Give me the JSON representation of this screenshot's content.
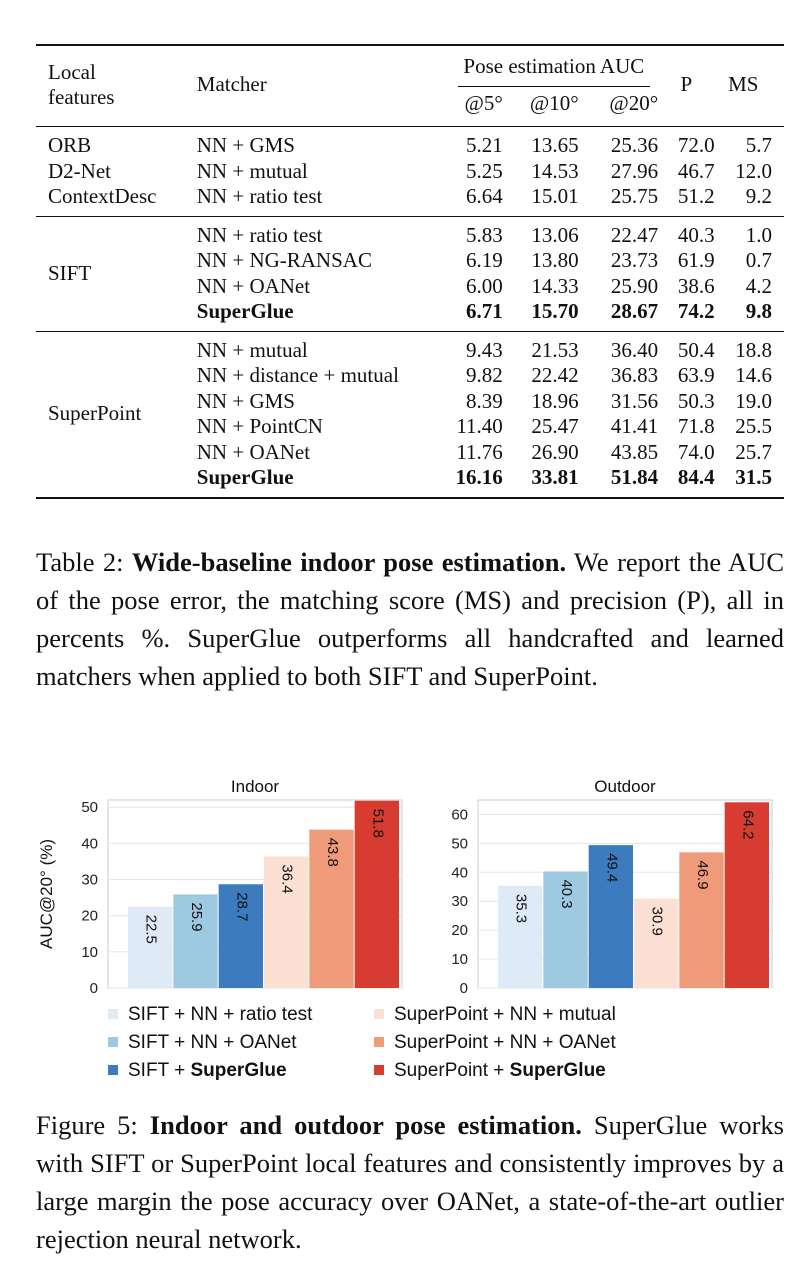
{
  "table": {
    "header": {
      "local_features": [
        "Local",
        "features"
      ],
      "matcher": "Matcher",
      "auc_group": "Pose estimation AUC",
      "auc5": "@5°",
      "auc10": "@10°",
      "auc20": "@20°",
      "p": "P",
      "ms": "MS"
    },
    "groups": [
      {
        "feature": "",
        "rows": [
          {
            "feature": "ORB",
            "matcher": "NN + GMS",
            "auc5": "5.21",
            "auc10": "13.65",
            "auc20": "25.36",
            "p": "72.0",
            "ms": "5.7",
            "bold": false
          },
          {
            "feature": "D2-Net",
            "matcher": "NN + mutual",
            "auc5": "5.25",
            "auc10": "14.53",
            "auc20": "27.96",
            "p": "46.7",
            "ms": "12.0",
            "bold": false
          },
          {
            "feature": "ContextDesc",
            "matcher": "NN + ratio test",
            "auc5": "6.64",
            "auc10": "15.01",
            "auc20": "25.75",
            "p": "51.2",
            "ms": "9.2",
            "bold": false
          }
        ]
      },
      {
        "feature": "SIFT",
        "rows": [
          {
            "feature": "",
            "matcher": "NN + ratio test",
            "auc5": "5.83",
            "auc10": "13.06",
            "auc20": "22.47",
            "p": "40.3",
            "ms": "1.0",
            "bold": false
          },
          {
            "feature": "",
            "matcher": "NN + NG-RANSAC",
            "auc5": "6.19",
            "auc10": "13.80",
            "auc20": "23.73",
            "p": "61.9",
            "ms": "0.7",
            "bold": false
          },
          {
            "feature": "",
            "matcher": "NN + OANet",
            "auc5": "6.00",
            "auc10": "14.33",
            "auc20": "25.90",
            "p": "38.6",
            "ms": "4.2",
            "bold": false
          },
          {
            "feature": "",
            "matcher": "SuperGlue",
            "auc5": "6.71",
            "auc10": "15.70",
            "auc20": "28.67",
            "p": "74.2",
            "ms": "9.8",
            "bold": true
          }
        ]
      },
      {
        "feature": "SuperPoint",
        "rows": [
          {
            "feature": "",
            "matcher": "NN + mutual",
            "auc5": "9.43",
            "auc10": "21.53",
            "auc20": "36.40",
            "p": "50.4",
            "ms": "18.8",
            "bold": false
          },
          {
            "feature": "",
            "matcher": "NN + distance + mutual",
            "auc5": "9.82",
            "auc10": "22.42",
            "auc20": "36.83",
            "p": "63.9",
            "ms": "14.6",
            "bold": false
          },
          {
            "feature": "",
            "matcher": "NN + GMS",
            "auc5": "8.39",
            "auc10": "18.96",
            "auc20": "31.56",
            "p": "50.3",
            "ms": "19.0",
            "bold": false
          },
          {
            "feature": "",
            "matcher": "NN + PointCN",
            "auc5": "11.40",
            "auc10": "25.47",
            "auc20": "41.41",
            "p": "71.8",
            "ms": "25.5",
            "bold": false
          },
          {
            "feature": "",
            "matcher": "NN + OANet",
            "auc5": "11.76",
            "auc10": "26.90",
            "auc20": "43.85",
            "p": "74.0",
            "ms": "25.7",
            "bold": false
          },
          {
            "feature": "",
            "matcher": "SuperGlue",
            "auc5": "16.16",
            "auc10": "33.81",
            "auc20": "51.84",
            "p": "84.4",
            "ms": "31.5",
            "bold": true
          }
        ]
      }
    ]
  },
  "table_caption": {
    "label": "Table 2:",
    "title": "Wide-baseline indoor pose estimation.",
    "body": "We report the AUC of the pose error, the matching score (MS) and precision (P), all in percents %. SuperGlue outperforms all handcrafted and learned matchers when applied to both SIFT and SuperPoint."
  },
  "chart_data": [
    {
      "type": "bar",
      "title": "Indoor",
      "ylabel": "AUC@20° (%)",
      "ylim": [
        0,
        52
      ],
      "yticks": [
        0,
        10,
        20,
        30,
        40,
        50
      ],
      "categories": [
        "SIFT + NN + ratio test",
        "SIFT + NN + OANet",
        "SIFT + SuperGlue",
        "SuperPoint + NN + mutual",
        "SuperPoint + NN + OANet",
        "SuperPoint + SuperGlue"
      ],
      "values": [
        22.5,
        25.9,
        28.7,
        36.4,
        43.8,
        51.8
      ],
      "labels": [
        "22.5",
        "25.9",
        "28.7",
        "36.4",
        "43.8",
        "51.8"
      ],
      "grid": true
    },
    {
      "type": "bar",
      "title": "Outdoor",
      "ylabel": "",
      "ylim": [
        0,
        65
      ],
      "yticks": [
        0,
        10,
        20,
        30,
        40,
        50,
        60
      ],
      "categories": [
        "SIFT + NN + ratio test",
        "SIFT + NN + OANet",
        "SIFT + SuperGlue",
        "SuperPoint + NN + mutual",
        "SuperPoint + NN + OANet",
        "SuperPoint + SuperGlue"
      ],
      "values": [
        35.3,
        40.3,
        49.4,
        30.9,
        46.9,
        64.2
      ],
      "labels": [
        "35.3",
        "40.3",
        "49.4",
        "30.9",
        "46.9",
        "64.2"
      ],
      "grid": true
    }
  ],
  "chart_colors": [
    "#deebf7",
    "#9ecae1",
    "#3d7bbf",
    "#fbe0d3",
    "#ef9a78",
    "#d63c2f"
  ],
  "legend": [
    {
      "prefix": "SIFT + NN + ratio test",
      "bold": ""
    },
    {
      "prefix": "SIFT + NN + OANet",
      "bold": ""
    },
    {
      "prefix": "SIFT + ",
      "bold": "SuperGlue"
    },
    {
      "prefix": "SuperPoint + NN + mutual",
      "bold": ""
    },
    {
      "prefix": "SuperPoint + NN + OANet",
      "bold": ""
    },
    {
      "prefix": "SuperPoint + ",
      "bold": "SuperGlue"
    }
  ],
  "figure_caption": {
    "label": "Figure 5:",
    "title": "Indoor and outdoor pose estimation.",
    "body": "SuperGlue works with SIFT or SuperPoint local features and consistently improves by a large margin the pose accuracy over OANet, a state-of-the-art outlier rejection neural network."
  }
}
